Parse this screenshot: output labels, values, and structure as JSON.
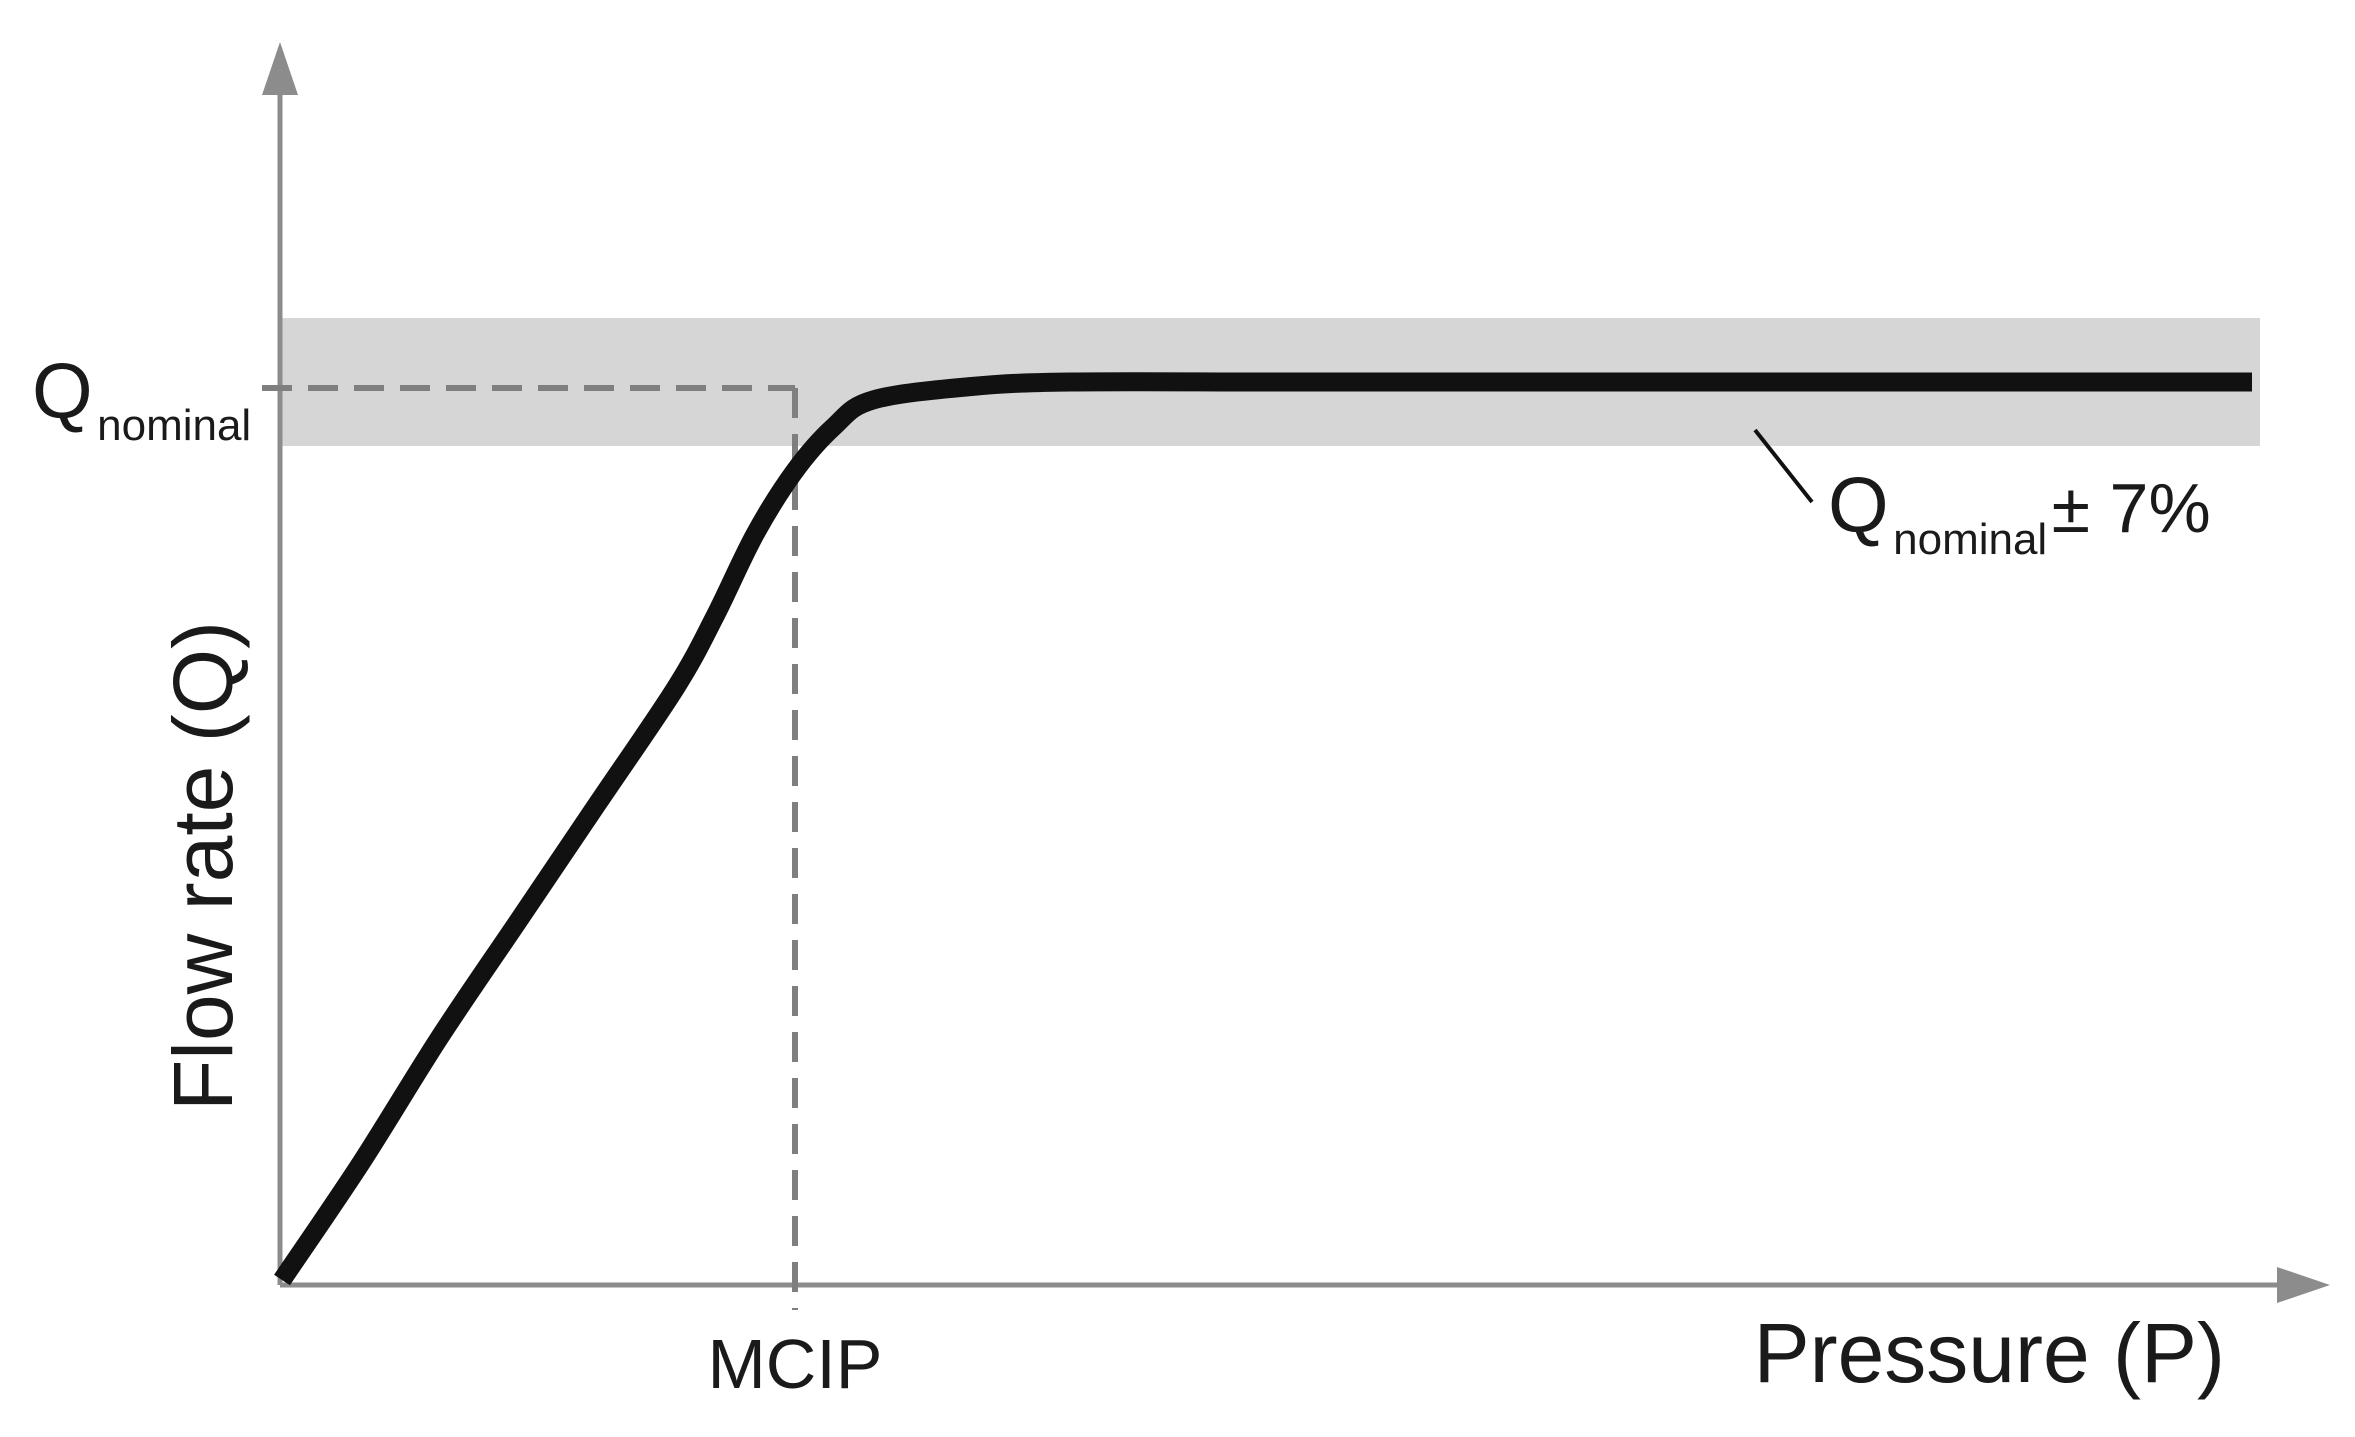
{
  "y_axis_label": "Flow rate (Q)",
  "x_axis_label": "Pressure (P)",
  "x_marker_label": "MCIP",
  "y_marker_label": {
    "symbol": "Q",
    "subscript": "nominal"
  },
  "band_annotation": {
    "symbol": "Q",
    "subscript": "nominal",
    "suffix": " ± 7%"
  },
  "colors": {
    "axis": "#8c8c8c",
    "curve": "#111111",
    "band": "#d6d6d6",
    "guide": "#7f7f7f",
    "text": "#1a1a1a"
  },
  "chart_data": {
    "type": "line",
    "title": "",
    "xlabel": "Pressure (P)",
    "ylabel": "Flow rate (Q)",
    "x_ticks": [
      "MCIP"
    ],
    "y_ticks": [
      "Q_nominal"
    ],
    "xlim": [
      0,
      1
    ],
    "ylim": [
      0,
      1
    ],
    "series": [
      {
        "x": [
          0,
          0.04,
          0.08,
          0.12,
          0.16,
          0.2,
          0.22,
          0.24,
          0.26,
          0.28,
          0.3,
          0.35,
          0.4,
          0.5,
          0.6,
          0.7,
          0.8,
          0.9,
          1.0
        ],
        "y": [
          0,
          0.13,
          0.27,
          0.4,
          0.53,
          0.66,
          0.74,
          0.83,
          0.9,
          0.95,
          0.98,
          0.995,
          1,
          1,
          1,
          1,
          1,
          1,
          1
        ]
      }
    ],
    "band": {
      "center": 1,
      "relative_tolerance": 0.07,
      "label": "Q_nominal ± 7%"
    },
    "guides": {
      "x": "MCIP",
      "y": "Q_nominal"
    },
    "grid": false,
    "legend": "none"
  }
}
